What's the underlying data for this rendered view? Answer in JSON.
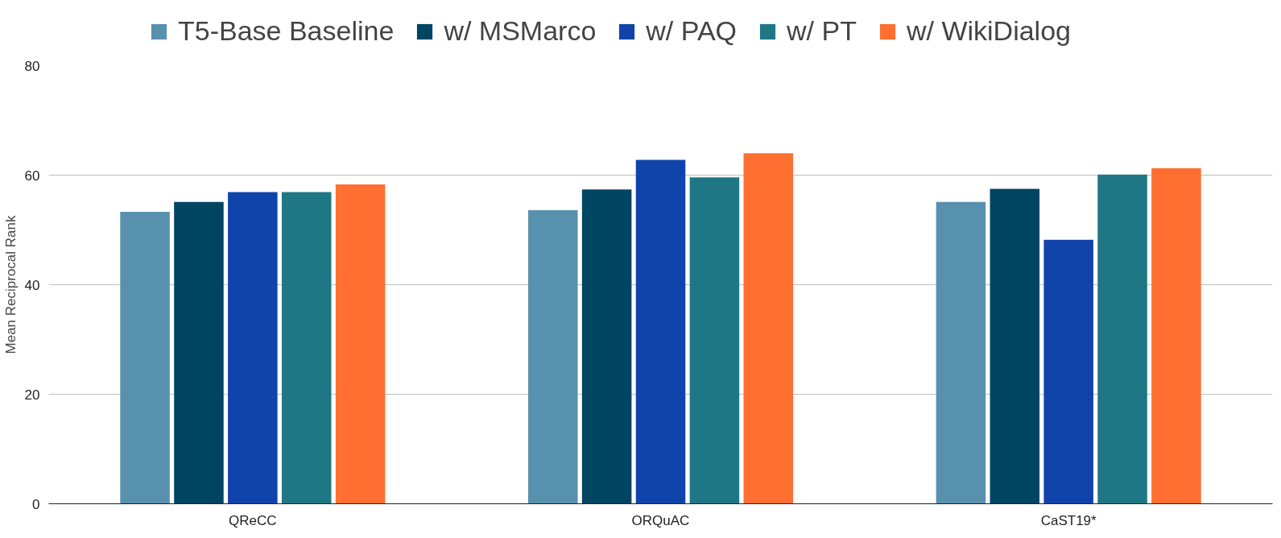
{
  "chart_data": {
    "type": "bar",
    "ylabel": "Mean Reciprocal Rank",
    "categories": [
      "QReCC",
      "ORQuAC",
      "CaST19*"
    ],
    "series": [
      {
        "name": "T5-Base Baseline",
        "color": "#5891ad",
        "values": [
          53.3,
          53.6,
          55.1
        ]
      },
      {
        "name": "w/ MSMarco",
        "color": "#004561",
        "values": [
          55.1,
          57.4,
          57.5
        ]
      },
      {
        "name": "w/ PAQ",
        "color": "#1144aa",
        "values": [
          56.9,
          62.8,
          48.2
        ]
      },
      {
        "name": "w/ PT",
        "color": "#1f7785",
        "values": [
          56.9,
          59.6,
          60.1
        ]
      },
      {
        "name": "w/ WikiDialog",
        "color": "#ff6f31",
        "values": [
          58.3,
          64.0,
          61.3
        ]
      }
    ],
    "ylim": [
      0,
      80
    ],
    "yticks": [
      0,
      20,
      40,
      60,
      80
    ],
    "grid": "y",
    "legend": "top"
  }
}
